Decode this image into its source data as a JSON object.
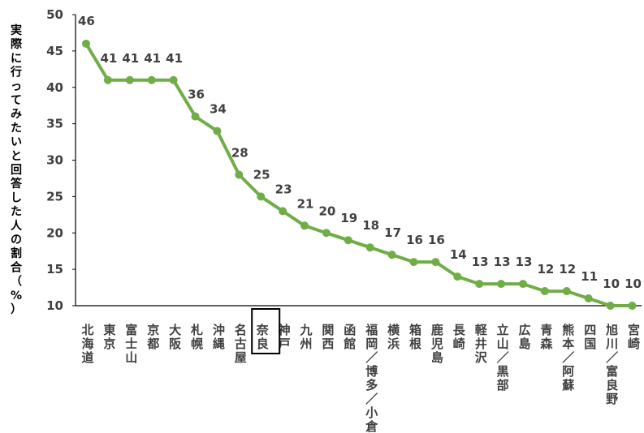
{
  "chart_data": {
    "type": "line",
    "title": "",
    "xlabel": "",
    "ylabel": "実際に行ってみたいと回答した人の割合（%）",
    "ylim": [
      10,
      50
    ],
    "yticks": [
      10,
      15,
      20,
      25,
      30,
      35,
      40,
      45,
      50
    ],
    "grid": false,
    "legend": "none",
    "line_color": "#70AD47",
    "highlight_category": "奈良",
    "categories": [
      "北海道",
      "東京",
      "富士山",
      "京都",
      "大阪",
      "札幌",
      "沖縄",
      "名古屋",
      "奈良",
      "神戸",
      "九州",
      "関西",
      "函館",
      "福岡／博多／小倉",
      "横浜",
      "箱根",
      "鹿児島",
      "長崎",
      "軽井沢",
      "立山／黒部",
      "広島",
      "青森",
      "熊本／阿蘇",
      "四国",
      "旭川／富良野",
      "宮崎"
    ],
    "values": [
      46,
      41,
      41,
      41,
      41,
      36,
      34,
      28,
      25,
      23,
      21,
      20,
      19,
      18,
      17,
      16,
      16,
      14,
      13,
      13,
      13,
      12,
      12,
      11,
      10,
      10
    ]
  }
}
